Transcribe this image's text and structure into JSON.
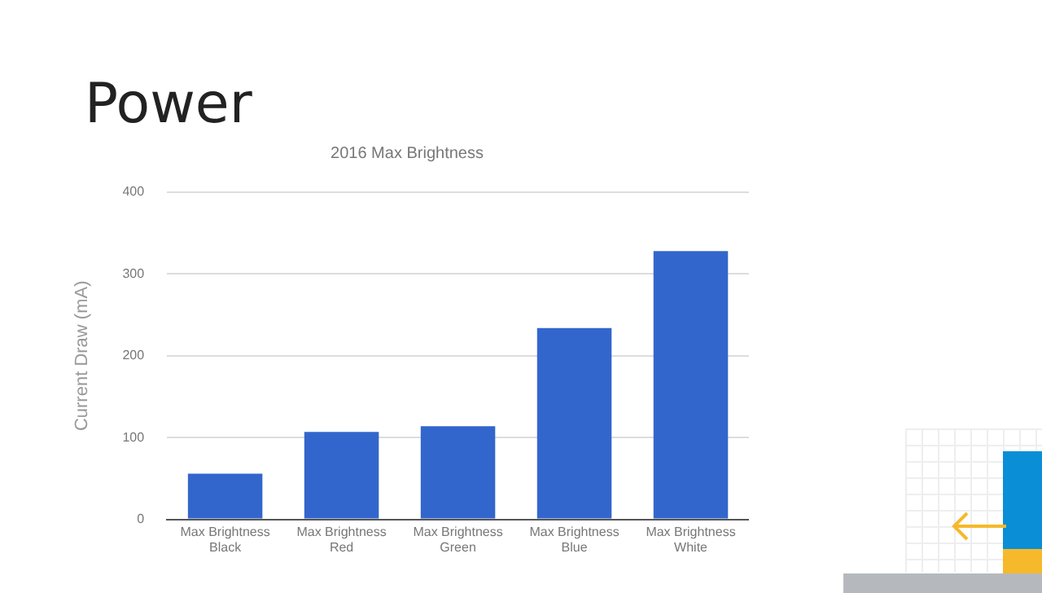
{
  "chart_data": {
    "type": "bar",
    "title": "Power",
    "subtitle": "2016 Max Brightness",
    "ylabel": "Current Draw (mA)",
    "categories": [
      "Max Brightness\nBlack",
      "Max Brightness\nRed",
      "Max Brightness\nGreen",
      "Max Brightness\nBlue",
      "Max Brightness\nWhite"
    ],
    "values": [
      56,
      107,
      114,
      234,
      328
    ],
    "color": "#3366cc",
    "ylim": [
      0,
      400
    ],
    "yticks": [
      0,
      100,
      200,
      300,
      400
    ],
    "grid": "y",
    "legend": false
  }
}
